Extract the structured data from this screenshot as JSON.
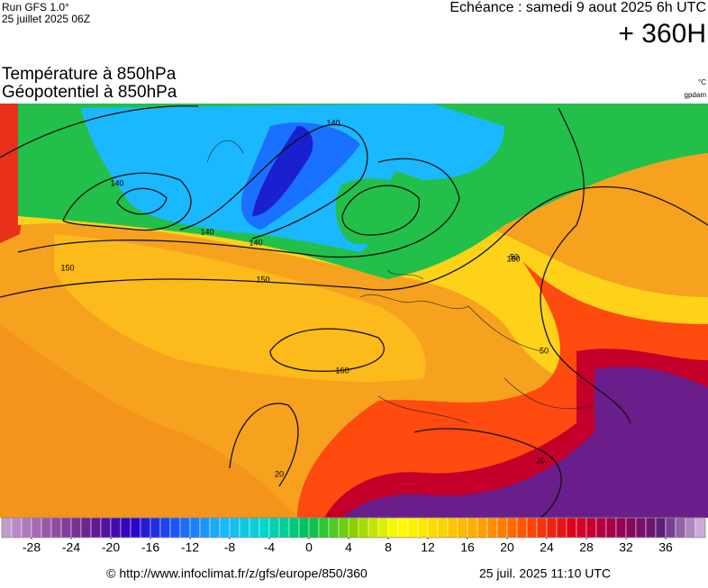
{
  "header": {
    "run": "Run GFS 1.0°",
    "run_date": "25 juillet 2025 06Z",
    "valid": "Echéance : samedi 9 aout 2025 6h UTC",
    "lead": "+ 360H"
  },
  "title": {
    "line1": "Température à 850hPa",
    "line2": "Géopotentiel à 850hPa"
  },
  "units": {
    "temperature": "°C",
    "geopotential": "gpdam"
  },
  "map": {
    "contour_labels": [
      140,
      140,
      140,
      140,
      150,
      150,
      150,
      160,
      20,
      20,
      50,
      50
    ]
  },
  "colorbar": {
    "range": [
      -31,
      40
    ],
    "ticks": [
      -28,
      -24,
      -20,
      -16,
      -12,
      -8,
      -4,
      0,
      4,
      8,
      12,
      16,
      20,
      24,
      28,
      32,
      36
    ],
    "colors": [
      "#c9a3d3",
      "#9a5aa8",
      "#6a1e8c",
      "#2a00c8",
      "#1a5cff",
      "#1ab8ff",
      "#00d8c8",
      "#00c050",
      "#8fd000",
      "#ffff00",
      "#ffd400",
      "#ff9c00",
      "#ff4800",
      "#e0001a",
      "#9a0050",
      "#5c1e7a",
      "#d9bde3"
    ]
  },
  "footer": {
    "source": "© http://www.infoclimat.fr/z/gfs/europe/850/360",
    "generated": "25 juil. 2025 11:10 UTC"
  }
}
